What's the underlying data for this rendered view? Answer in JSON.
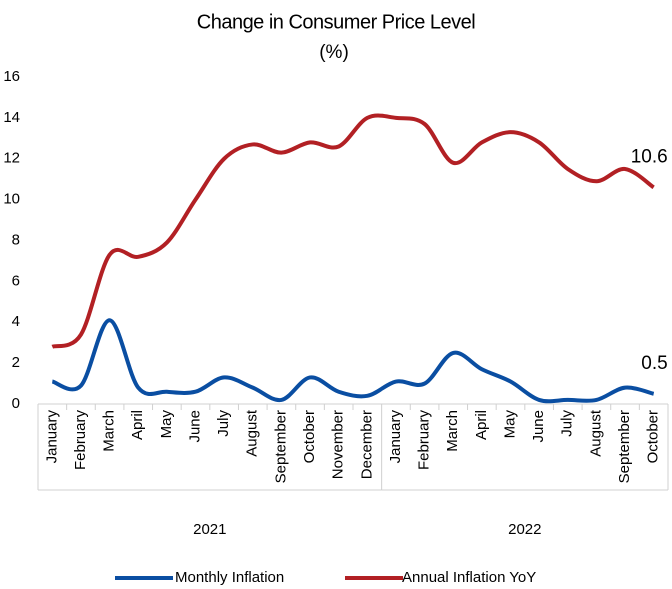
{
  "chart_data": {
    "type": "line",
    "title": "Change in Consumer Price Level",
    "subtitle": "(%)",
    "groups": [
      {
        "name": "2021",
        "categories": [
          "January",
          "February",
          "March",
          "April",
          "May",
          "June",
          "July",
          "August",
          "September",
          "October",
          "November",
          "December"
        ]
      },
      {
        "name": "2022",
        "categories": [
          "January",
          "February",
          "March",
          "April",
          "May",
          "June",
          "July",
          "August",
          "September",
          "October"
        ]
      }
    ],
    "series": [
      {
        "name": "Monthly Inflation",
        "color": "#0a4ea2",
        "values": [
          1.1,
          0.9,
          4.1,
          0.8,
          0.6,
          0.6,
          1.3,
          0.8,
          0.2,
          1.3,
          0.6,
          0.4,
          1.1,
          1.0,
          2.5,
          1.7,
          1.1,
          0.2,
          0.2,
          0.2,
          0.8,
          0.5
        ],
        "value_labels": [
          null,
          null,
          null,
          null,
          null,
          null,
          null,
          null,
          null,
          null,
          null,
          null,
          null,
          null,
          null,
          null,
          null,
          null,
          null,
          null,
          null,
          "0.5"
        ]
      },
      {
        "name": "Annual Inflation YoY",
        "color": "#b22024",
        "values": [
          2.8,
          3.4,
          7.3,
          7.2,
          7.9,
          10.0,
          12.0,
          12.7,
          12.3,
          12.8,
          12.6,
          14.0,
          14.0,
          13.7,
          11.8,
          12.8,
          13.3,
          12.8,
          11.5,
          10.9,
          11.5,
          10.6
        ],
        "value_labels": [
          null,
          null,
          null,
          null,
          null,
          null,
          null,
          null,
          null,
          null,
          null,
          null,
          null,
          null,
          null,
          null,
          null,
          null,
          null,
          null,
          null,
          "10.6"
        ]
      }
    ],
    "ylim": [
      0,
      16
    ],
    "yticks": [
      0,
      2,
      4,
      6,
      8,
      10,
      12,
      14,
      16
    ],
    "grid": false,
    "legend": "bottom"
  }
}
